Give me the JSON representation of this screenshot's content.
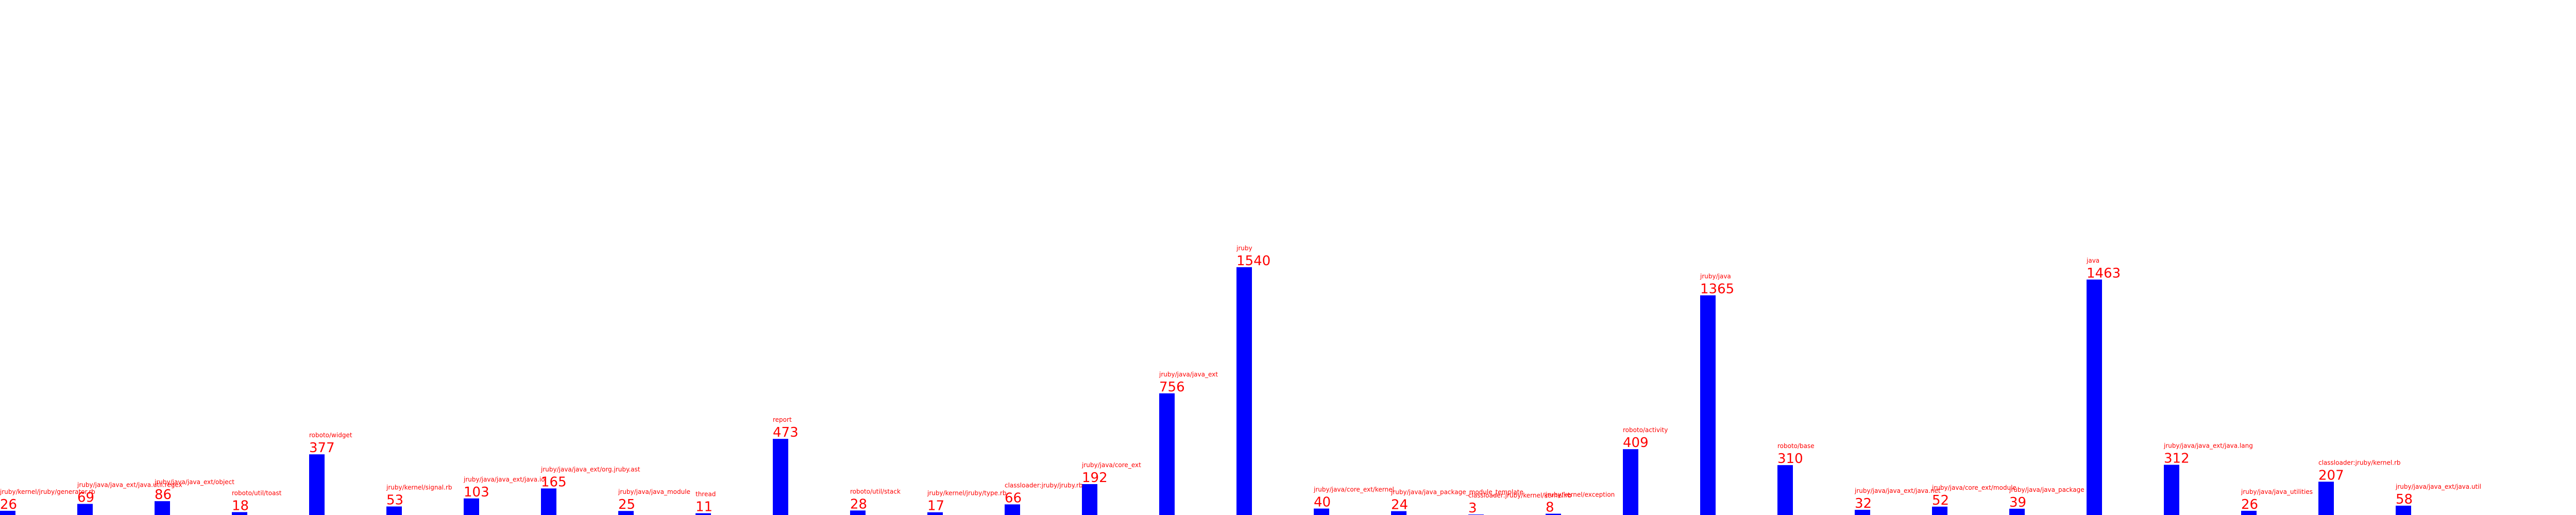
{
  "chart_data": {
    "type": "bar",
    "title": "",
    "xlabel": "",
    "ylabel": "",
    "ylim": [
      0,
      3200
    ],
    "grid": false,
    "legend": "none",
    "colors": {
      "bar": "#0000ff",
      "label": "#ff0000"
    },
    "categories": [
      "jruby/kernel/jruby/generator.rb",
      "jruby/java/java_ext/java.util.regex",
      "jruby/java/java_ext/object",
      "roboto/util/toast",
      "roboto/widget",
      "jruby/kernel/signal.rb",
      "jruby/java/java_ext/java.io",
      "jruby/java/java_ext/org.jruby.ast",
      "jruby/java/java_module",
      "thread",
      "report",
      "roboto/util/stack",
      "jruby/kernel/jruby/type.rb",
      "classloader:jruby/jruby.rb",
      "jruby/java/core_ext",
      "jruby/java/java_ext",
      "jruby",
      "jruby/java/core_ext/kernel",
      "jruby/java/java_package_module_template",
      "classloader:jruby/kernel/kernel.rb",
      "jruby/kernel/exception",
      "roboto/activity",
      "jruby/java",
      "roboto/base",
      "jruby/java/java_ext/java.net",
      "jruby/java/core_ext/module",
      "jruby/java/java_package",
      "java",
      "jruby/java/java_ext/java.lang",
      "jruby/java/java_utilities",
      "classloader:jruby/kernel.rb",
      "jruby/java/java_ext/java.util"
    ],
    "values": [
      26,
      69,
      86,
      18,
      377,
      53,
      103,
      165,
      25,
      11,
      473,
      28,
      17,
      66,
      192,
      756,
      1540,
      40,
      24,
      3,
      8,
      409,
      1365,
      310,
      32,
      52,
      39,
      1463,
      312,
      26,
      207,
      58
    ]
  }
}
